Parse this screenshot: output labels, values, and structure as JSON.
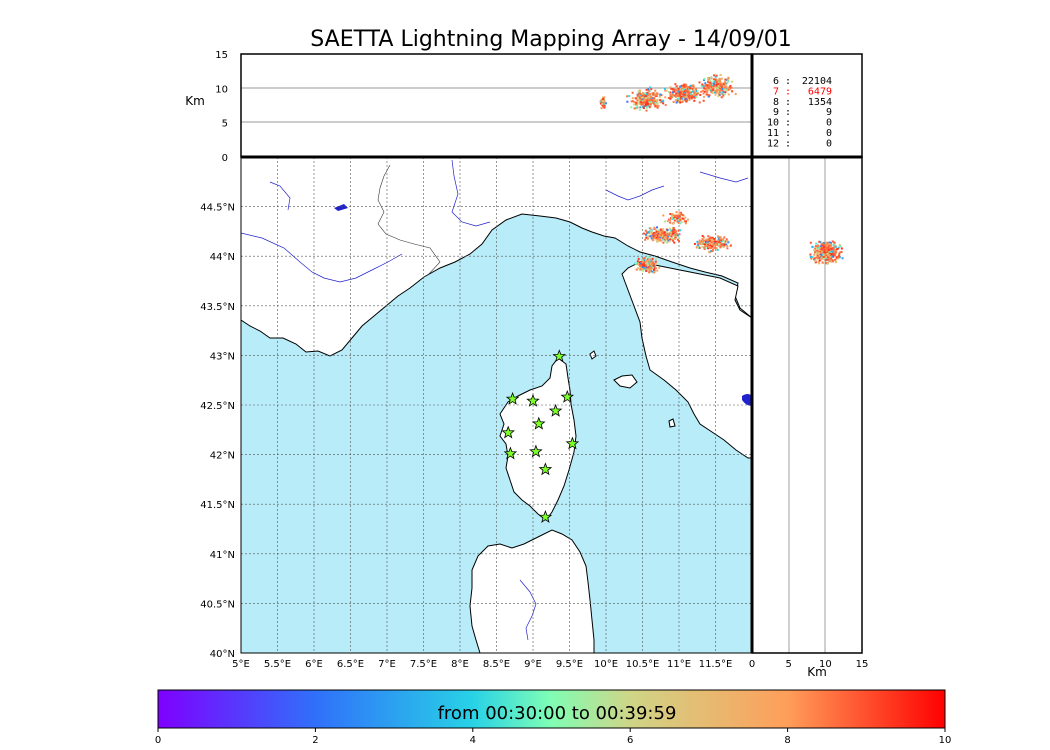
{
  "chart_data": {
    "type": "scatter",
    "title": "SAETTA Lightning Mapping Array - 14/09/01",
    "map": {
      "lon_range": [
        5,
        12
      ],
      "lat_range": [
        40,
        45
      ],
      "lon_ticks": [
        "5°E",
        "5.5°E",
        "6°E",
        "6.5°E",
        "7°E",
        "7.5°E",
        "8°E",
        "8.5°E",
        "9°E",
        "9.5°E",
        "10°E",
        "10.5°E",
        "11°E",
        "11.5°E"
      ],
      "lat_ticks": [
        "40°N",
        "40.5°N",
        "41°N",
        "41.5°N",
        "42°N",
        "42.5°N",
        "43°N",
        "43.5°N",
        "44°N",
        "44.5°N"
      ],
      "sea_color": "#b8ecf9",
      "stations": [
        {
          "lon": 9.36,
          "lat": 42.99
        },
        {
          "lon": 8.72,
          "lat": 42.56
        },
        {
          "lon": 9.0,
          "lat": 42.54
        },
        {
          "lon": 9.47,
          "lat": 42.58
        },
        {
          "lon": 9.08,
          "lat": 42.31
        },
        {
          "lon": 9.31,
          "lat": 42.44
        },
        {
          "lon": 8.66,
          "lat": 42.22
        },
        {
          "lon": 9.54,
          "lat": 42.11
        },
        {
          "lon": 8.69,
          "lat": 42.01
        },
        {
          "lon": 9.04,
          "lat": 42.03
        },
        {
          "lon": 9.17,
          "lat": 41.85
        },
        {
          "lon": 9.17,
          "lat": 41.37
        }
      ],
      "clusters": [
        {
          "lon": 10.55,
          "lat": 43.92,
          "spread_lon": 0.18,
          "spread_lat": 0.1,
          "count": 220
        },
        {
          "lon": 10.75,
          "lat": 44.22,
          "spread_lon": 0.35,
          "spread_lat": 0.1,
          "count": 220
        },
        {
          "lon": 11.45,
          "lat": 44.14,
          "spread_lon": 0.3,
          "spread_lat": 0.1,
          "count": 200
        },
        {
          "lon": 10.95,
          "lat": 44.4,
          "spread_lon": 0.2,
          "spread_lat": 0.08,
          "count": 80
        }
      ]
    },
    "altitude_panel": {
      "ylabel": "Km",
      "yticks": [
        "0",
        "5",
        "10",
        "15"
      ],
      "ylim": [
        0,
        15
      ],
      "clusters": [
        {
          "lon": 9.95,
          "alt": 8.0,
          "spread_lon": 0.05,
          "spread_alt": 1.0,
          "count": 60
        },
        {
          "lon": 10.55,
          "alt": 8.5,
          "spread_lon": 0.3,
          "spread_alt": 2.0,
          "count": 260
        },
        {
          "lon": 11.05,
          "alt": 9.5,
          "spread_lon": 0.35,
          "spread_alt": 2.0,
          "count": 220
        },
        {
          "lon": 11.5,
          "alt": 10.5,
          "spread_lon": 0.3,
          "spread_alt": 2.0,
          "count": 240
        }
      ]
    },
    "side_panel": {
      "xlabel": "Km",
      "xticks": [
        "0",
        "5",
        "10",
        "15"
      ],
      "xlim": [
        0,
        15
      ],
      "clusters": [
        {
          "alt": 10.0,
          "lat": 44.05,
          "spread_alt": 2.5,
          "spread_lat": 0.15,
          "count": 360
        }
      ]
    },
    "station_counts": [
      {
        "n": "6",
        "count": "22104",
        "color": "#000000"
      },
      {
        "n": "7",
        "count": "6479",
        "color": "#ff0000"
      },
      {
        "n": "8",
        "count": "1354",
        "color": "#000000"
      },
      {
        "n": "9",
        "count": "9",
        "color": "#000000"
      },
      {
        "n": "10",
        "count": "0",
        "color": "#000000"
      },
      {
        "n": "11",
        "count": "0",
        "color": "#000000"
      },
      {
        "n": "12",
        "count": "0",
        "color": "#000000"
      }
    ],
    "colorbar": {
      "label": "from 00:30:00 to 00:39:59",
      "ticks": [
        "0",
        "2",
        "4",
        "6",
        "8",
        "10"
      ],
      "range": [
        0,
        10
      ],
      "colormap": "rainbow"
    }
  }
}
